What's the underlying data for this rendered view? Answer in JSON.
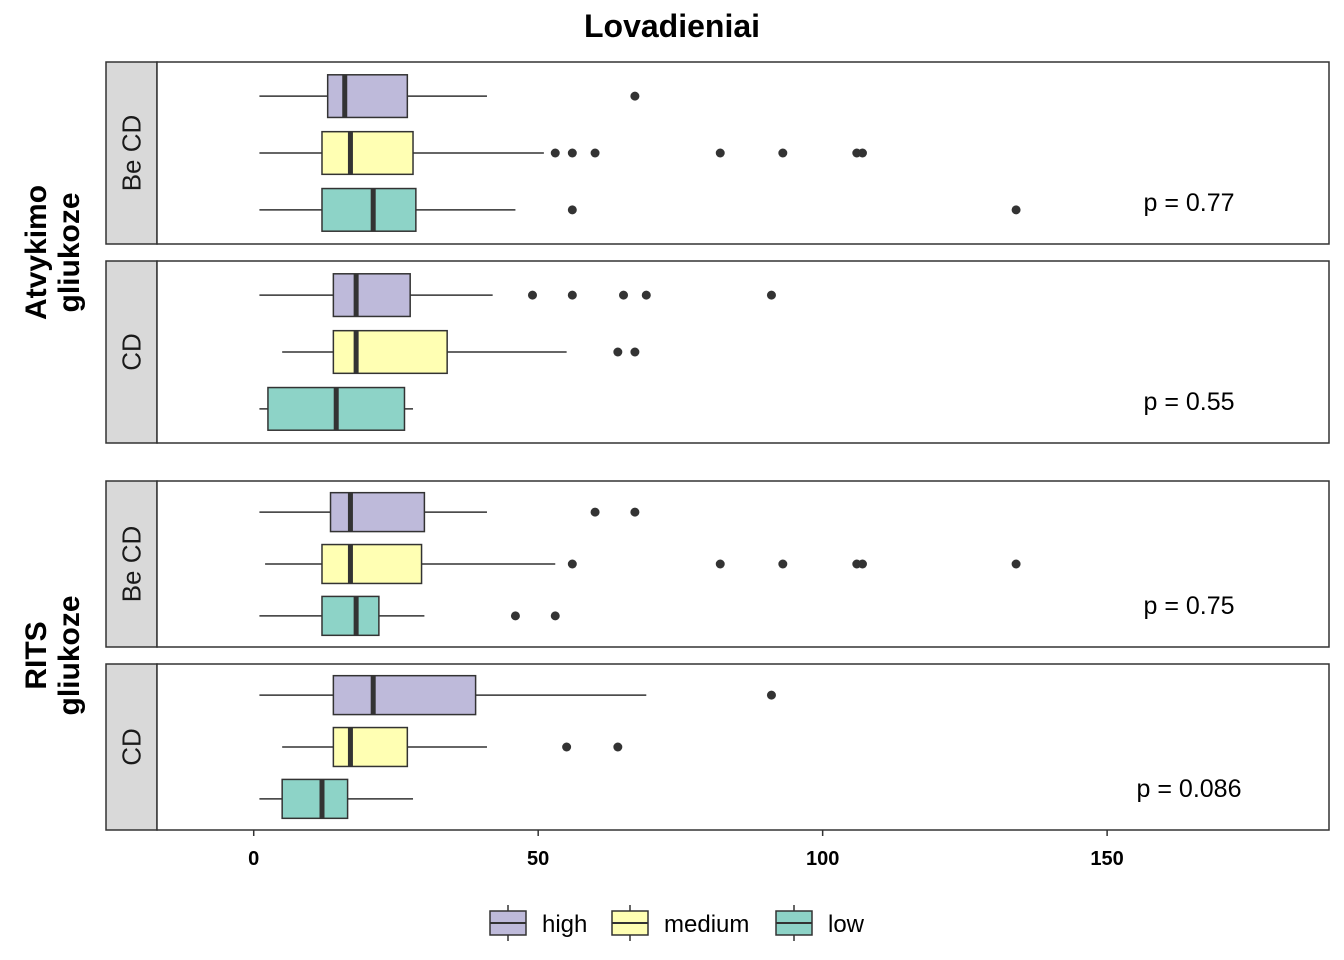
{
  "chart_data": {
    "type": "boxplot",
    "title": "Lovadieniai",
    "orientation": "horizontal",
    "xlim": [
      -17,
      189
    ],
    "x_ticks": [
      0,
      50,
      100,
      150
    ],
    "groups": [
      "high",
      "medium",
      "low"
    ],
    "colors": {
      "high": "#bebada",
      "medium": "#ffffb3",
      "low": "#8dd3c7"
    },
    "legend_position": "bottom",
    "row_groups": [
      {
        "label": "Atvykimo gliukoze",
        "label_lines": [
          "Atvykimo",
          "gliukoze"
        ],
        "panels": [
          {
            "strip": "Be CD",
            "p_label": "p = 0.77",
            "boxes": [
              {
                "group": "high",
                "whisker_low": 1,
                "q1": 13,
                "median": 16,
                "q3": 27,
                "whisker_high": 41,
                "outliers": [
                  67
                ]
              },
              {
                "group": "medium",
                "whisker_low": 1,
                "q1": 12,
                "median": 17,
                "q3": 28,
                "whisker_high": 51,
                "outliers": [
                  53,
                  56,
                  60,
                  82,
                  93,
                  106,
                  107
                ]
              },
              {
                "group": "low",
                "whisker_low": 1,
                "q1": 12,
                "median": 21,
                "q3": 28.5,
                "whisker_high": 46,
                "outliers": [
                  56,
                  134
                ]
              }
            ]
          },
          {
            "strip": "CD",
            "p_label": "p = 0.55",
            "boxes": [
              {
                "group": "high",
                "whisker_low": 1,
                "q1": 14,
                "median": 18,
                "q3": 27.5,
                "whisker_high": 42,
                "outliers": [
                  49,
                  56,
                  65,
                  69,
                  91
                ]
              },
              {
                "group": "medium",
                "whisker_low": 5,
                "q1": 14,
                "median": 18,
                "q3": 34,
                "whisker_high": 55,
                "outliers": [
                  64,
                  67
                ]
              },
              {
                "group": "low",
                "whisker_low": 1,
                "q1": 2.5,
                "median": 14.5,
                "q3": 26.5,
                "whisker_high": 28,
                "outliers": []
              }
            ]
          }
        ]
      },
      {
        "label": "RITS gliukoze",
        "label_lines": [
          "RITS",
          "gliukoze"
        ],
        "panels": [
          {
            "strip": "Be CD",
            "p_label": "p = 0.75",
            "boxes": [
              {
                "group": "high",
                "whisker_low": 1,
                "q1": 13.5,
                "median": 17,
                "q3": 30,
                "whisker_high": 41,
                "outliers": [
                  60,
                  67
                ]
              },
              {
                "group": "medium",
                "whisker_low": 2,
                "q1": 12,
                "median": 17,
                "q3": 29.5,
                "whisker_high": 53,
                "outliers": [
                  56,
                  82,
                  93,
                  106,
                  107,
                  134
                ]
              },
              {
                "group": "low",
                "whisker_low": 1,
                "q1": 12,
                "median": 18,
                "q3": 22,
                "whisker_high": 30,
                "outliers": [
                  46,
                  53
                ]
              }
            ]
          },
          {
            "strip": "CD",
            "p_label": "p = 0.086",
            "boxes": [
              {
                "group": "high",
                "whisker_low": 1,
                "q1": 14,
                "median": 21,
                "q3": 39,
                "whisker_high": 69,
                "outliers": [
                  91
                ]
              },
              {
                "group": "medium",
                "whisker_low": 5,
                "q1": 14,
                "median": 17,
                "q3": 27,
                "whisker_high": 41,
                "outliers": [
                  55,
                  64
                ]
              },
              {
                "group": "low",
                "whisker_low": 1,
                "q1": 5,
                "median": 12,
                "q3": 16.5,
                "whisker_high": 28,
                "outliers": []
              }
            ]
          }
        ]
      }
    ]
  }
}
